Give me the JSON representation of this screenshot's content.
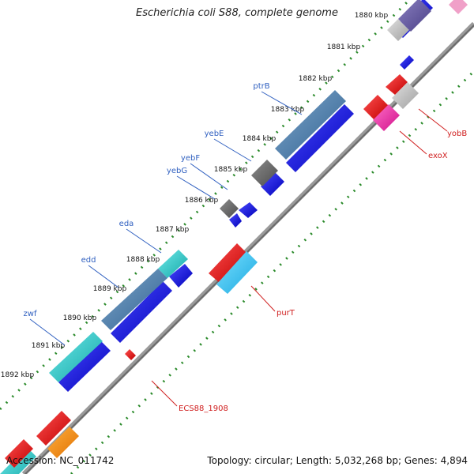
{
  "title": "Escherichia coli S88, complete genome",
  "accession_label": "Accession: NC_011742",
  "summary_label": "Topology: circular; Length: 5,032,268 bp; Genes: 4,894",
  "ticks": [
    {
      "label": "1880 kbp"
    },
    {
      "label": "1881 kbp"
    },
    {
      "label": "1882 kbp"
    },
    {
      "label": "1883 kbp"
    },
    {
      "label": "1884 kbp"
    },
    {
      "label": "1885 kbp"
    },
    {
      "label": "1886 kbp"
    },
    {
      "label": "1887 kbp"
    },
    {
      "label": "1888 kbp"
    },
    {
      "label": "1889 kbp"
    },
    {
      "label": "1890 kbp"
    },
    {
      "label": "1891 kbp"
    },
    {
      "label": "1892 kbp"
    }
  ],
  "genes_forward": [
    {
      "name": "ptrB",
      "color": "#3060c0"
    },
    {
      "name": "yebE",
      "color": "#3060c0"
    },
    {
      "name": "yebF",
      "color": "#3060c0"
    },
    {
      "name": "yebG",
      "color": "#3060c0"
    },
    {
      "name": "eda",
      "color": "#3060c0"
    },
    {
      "name": "edd",
      "color": "#3060c0"
    },
    {
      "name": "zwf",
      "color": "#3060c0"
    }
  ],
  "genes_reverse": [
    {
      "name": "yobB",
      "color": "#d02020"
    },
    {
      "name": "exoX",
      "color": "#d02020"
    },
    {
      "name": "purT",
      "color": "#d02020"
    },
    {
      "name": "ECS88_1908",
      "color": "#d02020"
    }
  ],
  "colors": {
    "backbone": "#808080",
    "tick_dots": "#2a8a2a",
    "forward_cds": "#1515e0",
    "reverse_cds": "#f01818"
  }
}
